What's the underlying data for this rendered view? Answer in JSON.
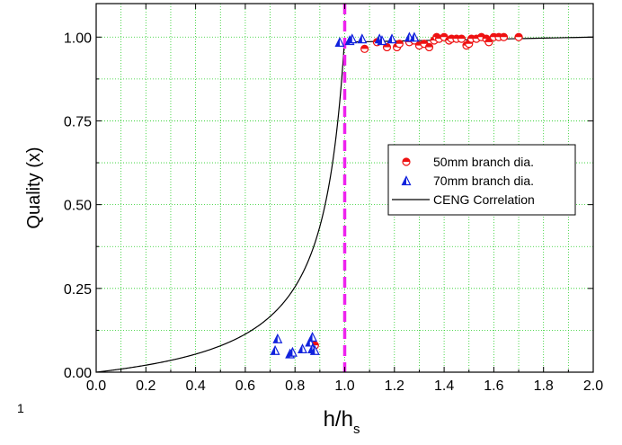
{
  "stray_label": "1",
  "chart_data": {
    "type": "scatter",
    "xlabel_main": "h/h",
    "xlabel_sub": "s",
    "ylabel": "Quality (x)",
    "xlim": [
      0.0,
      2.0
    ],
    "ylim": [
      0.0,
      1.1
    ],
    "x_ticks": [
      "0.0",
      "0.2",
      "0.4",
      "0.6",
      "0.8",
      "1.0",
      "1.2",
      "1.4",
      "1.6",
      "1.8",
      "2.0"
    ],
    "y_ticks": [
      "0.00",
      "0.25",
      "0.50",
      "0.75",
      "1.00"
    ],
    "grid": true,
    "grid_color": "#22cc22",
    "legend_position": "center-right",
    "reference_line": {
      "x": 1.0,
      "color": "#ee22ee",
      "style": "dashed"
    },
    "series": [
      {
        "name": "50mm branch dia.",
        "marker": "half-circle",
        "color": "#ee1111",
        "points": [
          [
            0.88,
            0.08
          ],
          [
            1.08,
            0.965
          ],
          [
            1.13,
            0.985
          ],
          [
            1.17,
            0.97
          ],
          [
            1.21,
            0.97
          ],
          [
            1.22,
            0.98
          ],
          [
            1.26,
            0.985
          ],
          [
            1.28,
            0.99
          ],
          [
            1.3,
            0.975
          ],
          [
            1.32,
            0.98
          ],
          [
            1.34,
            0.97
          ],
          [
            1.36,
            0.99
          ],
          [
            1.37,
            1.0
          ],
          [
            1.38,
            0.995
          ],
          [
            1.4,
            1.0
          ],
          [
            1.42,
            0.99
          ],
          [
            1.43,
            0.995
          ],
          [
            1.45,
            0.995
          ],
          [
            1.47,
            0.995
          ],
          [
            1.49,
            0.975
          ],
          [
            1.5,
            0.98
          ],
          [
            1.51,
            0.995
          ],
          [
            1.53,
            0.995
          ],
          [
            1.55,
            1.0
          ],
          [
            1.57,
            0.995
          ],
          [
            1.58,
            0.985
          ],
          [
            1.6,
            1.0
          ],
          [
            1.62,
            1.0
          ],
          [
            1.64,
            1.0
          ],
          [
            1.7,
            1.0
          ]
        ]
      },
      {
        "name": "70mm branch dia.",
        "marker": "half-triangle",
        "color": "#1122dd",
        "points": [
          [
            0.72,
            0.065
          ],
          [
            0.73,
            0.1
          ],
          [
            0.78,
            0.055
          ],
          [
            0.79,
            0.06
          ],
          [
            0.83,
            0.07
          ],
          [
            0.86,
            0.09
          ],
          [
            0.87,
            0.105
          ],
          [
            0.87,
            0.07
          ],
          [
            0.88,
            0.065
          ],
          [
            0.98,
            0.985
          ],
          [
            1.02,
            0.99
          ],
          [
            1.03,
            0.995
          ],
          [
            1.07,
            0.995
          ],
          [
            1.14,
            0.995
          ],
          [
            1.15,
            0.99
          ],
          [
            1.19,
            0.995
          ],
          [
            1.26,
            1.0
          ],
          [
            1.28,
            1.0
          ]
        ]
      },
      {
        "name": "CENG Correlation",
        "marker": "line",
        "color": "#000000"
      }
    ]
  }
}
